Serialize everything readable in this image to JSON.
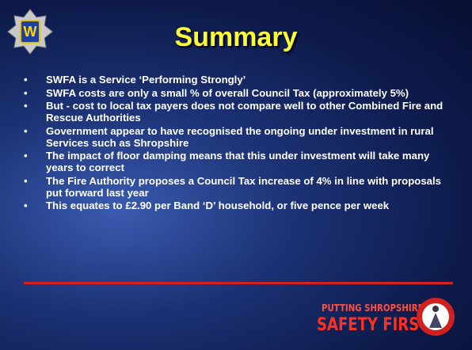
{
  "slide": {
    "title": "Summary",
    "bullets": [
      "SWFA is a Service ‘Performing Strongly’",
      "SWFA costs are only a small % of overall Council Tax (approximately 5%)",
      "But - cost to local tax payers does not compare well to other Combined Fire and Rescue Authorities",
      "Government appear to have recognised the ongoing under investment in rural Services such as Shropshire",
      "The impact of floor damping means that this under investment will take many years to correct",
      "The Fire Authority proposes a Council Tax increase of 4% in line with proposals put forward last year",
      "This equates to £2.90 per Band ‘D’ household, or five pence per week"
    ],
    "logo": {
      "line1": "PUTTING SHROPSHIRE'S",
      "line2": "SAFETY FIRST"
    }
  }
}
